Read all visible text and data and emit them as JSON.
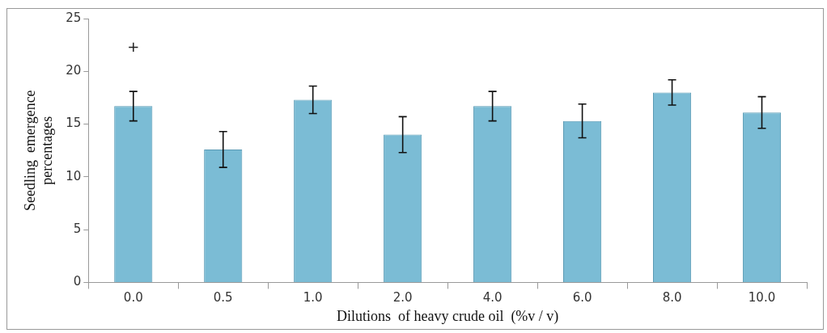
{
  "chart_data": {
    "type": "bar",
    "xlabel": "Dilutions  of heavy crude oil  (%v / v)",
    "ylabel": "Seedling  emergence\npercentages",
    "categories": [
      "0.0",
      "0.5",
      "1.0",
      "2.0",
      "4.0",
      "6.0",
      "8.0",
      "10.0"
    ],
    "values": [
      16.7,
      12.6,
      17.3,
      14.0,
      16.7,
      15.3,
      18.0,
      16.1
    ],
    "errors": [
      1.4,
      1.7,
      1.3,
      1.7,
      1.4,
      1.6,
      1.2,
      1.5
    ],
    "color": "#7bbcd5",
    "ylim": [
      0,
      25
    ],
    "yticks": [
      0,
      5,
      10,
      15,
      20,
      25
    ],
    "grid": false,
    "legend": false,
    "annotations": [
      "+"
    ]
  }
}
